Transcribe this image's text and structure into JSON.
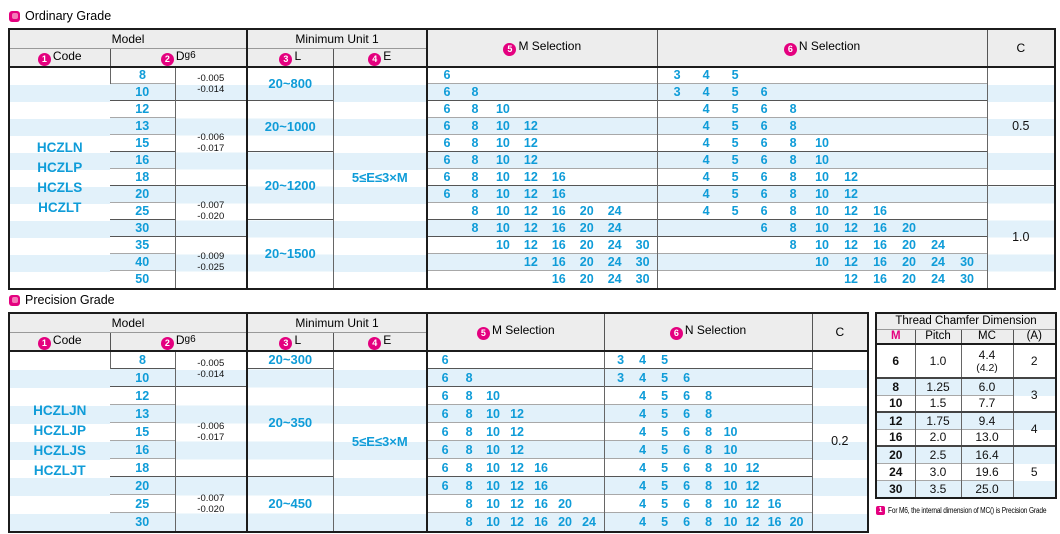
{
  "header": {
    "model": "Model",
    "min_unit": "Minimum Unit 1",
    "num1": "1",
    "num2": "2",
    "num3": "3",
    "num4": "4",
    "num5": "5",
    "num6": "6",
    "code": "Code",
    "d": "D",
    "dsup": "g6",
    "l": "L",
    "e": "E",
    "m": "M Selection",
    "n": "N Selection",
    "c": "C"
  },
  "colors": {
    "accent_blue": "#0f9cd8",
    "accent_magenta": "#e4007f",
    "stripe": "#e2f1fa",
    "header_bg": "#ededed"
  },
  "ordinary": {
    "title": "Ordinary Grade",
    "codes": [
      "HCZLN",
      "HCZLP",
      "HCZLS",
      "HCZLT"
    ],
    "m_slots": [
      6,
      8,
      10,
      12,
      16,
      20,
      24,
      30
    ],
    "n_slots": [
      3,
      4,
      5,
      6,
      8,
      10,
      12,
      16,
      20,
      24,
      30
    ],
    "rows": [
      {
        "d": "8",
        "m": [
          6
        ],
        "n": [
          3,
          4,
          5
        ]
      },
      {
        "d": "10",
        "m": [
          6,
          8
        ],
        "n": [
          3,
          4,
          5,
          6
        ]
      },
      {
        "d": "12",
        "m": [
          6,
          8,
          10
        ],
        "n": [
          4,
          5,
          6,
          8
        ]
      },
      {
        "d": "13",
        "m": [
          6,
          8,
          10,
          12
        ],
        "n": [
          4,
          5,
          6,
          8
        ]
      },
      {
        "d": "15",
        "m": [
          6,
          8,
          10,
          12
        ],
        "n": [
          4,
          5,
          6,
          8,
          10
        ]
      },
      {
        "d": "16",
        "m": [
          6,
          8,
          10,
          12
        ],
        "n": [
          4,
          5,
          6,
          8,
          10
        ]
      },
      {
        "d": "18",
        "m": [
          6,
          8,
          10,
          12,
          16
        ],
        "n": [
          4,
          5,
          6,
          8,
          10,
          12
        ]
      },
      {
        "d": "20",
        "m": [
          6,
          8,
          10,
          12,
          16
        ],
        "n": [
          4,
          5,
          6,
          8,
          10,
          12
        ]
      },
      {
        "d": "25",
        "m": [
          8,
          10,
          12,
          16,
          20,
          24
        ],
        "n": [
          4,
          5,
          6,
          8,
          10,
          12,
          16
        ]
      },
      {
        "d": "30",
        "m": [
          8,
          10,
          12,
          16,
          20,
          24
        ],
        "n": [
          6,
          8,
          10,
          12,
          16,
          20
        ]
      },
      {
        "d": "35",
        "m": [
          10,
          12,
          16,
          20,
          24,
          30
        ],
        "n": [
          8,
          10,
          12,
          16,
          20,
          24
        ]
      },
      {
        "d": "40",
        "m": [
          12,
          16,
          20,
          24,
          30
        ],
        "n": [
          10,
          12,
          16,
          20,
          24,
          30
        ]
      },
      {
        "d": "50",
        "m": [
          16,
          20,
          24,
          30
        ],
        "n": [
          12,
          16,
          20,
          24,
          30
        ]
      }
    ],
    "tol_groups": [
      {
        "span": 2,
        "t1": "-0.005",
        "t2": "-0.014"
      },
      {
        "span": 5,
        "t1": "-0.006",
        "t2": "-0.017"
      },
      {
        "span": 3,
        "t1": "-0.007",
        "t2": "-0.020"
      },
      {
        "span": 3,
        "t1": "-0.009",
        "t2": "-0.025"
      }
    ],
    "l_groups": [
      {
        "span": 2,
        "text": "20~800"
      },
      {
        "span": 3,
        "text": "20~1000"
      },
      {
        "span": 4,
        "text": "20~1200"
      },
      {
        "span": 4,
        "text": "20~1500"
      }
    ],
    "e": "5≤E≤3×M",
    "c_groups": [
      {
        "span": 7,
        "text": "0.5"
      },
      {
        "span": 6,
        "text": "1.0"
      }
    ]
  },
  "precision": {
    "title": "Precision Grade",
    "codes": [
      "HCZLJN",
      "HCZLJP",
      "HCZLJS",
      "HCZLJT"
    ],
    "m_slots": [
      6,
      8,
      10,
      12,
      16,
      20,
      24
    ],
    "n_slots": [
      3,
      4,
      5,
      6,
      8,
      10,
      12,
      16,
      20
    ],
    "rows": [
      {
        "d": "8",
        "m": [
          6
        ],
        "n": [
          3,
          4,
          5
        ]
      },
      {
        "d": "10",
        "m": [
          6,
          8
        ],
        "n": [
          3,
          4,
          5,
          6
        ]
      },
      {
        "d": "12",
        "m": [
          6,
          8,
          10
        ],
        "n": [
          4,
          5,
          6,
          8
        ]
      },
      {
        "d": "13",
        "m": [
          6,
          8,
          10,
          12
        ],
        "n": [
          4,
          5,
          6,
          8
        ]
      },
      {
        "d": "15",
        "m": [
          6,
          8,
          10,
          12
        ],
        "n": [
          4,
          5,
          6,
          8,
          10
        ]
      },
      {
        "d": "16",
        "m": [
          6,
          8,
          10,
          12
        ],
        "n": [
          4,
          5,
          6,
          8,
          10
        ]
      },
      {
        "d": "18",
        "m": [
          6,
          8,
          10,
          12,
          16
        ],
        "n": [
          4,
          5,
          6,
          8,
          10,
          12
        ]
      },
      {
        "d": "20",
        "m": [
          6,
          8,
          10,
          12,
          16
        ],
        "n": [
          4,
          5,
          6,
          8,
          10,
          12
        ]
      },
      {
        "d": "25",
        "m": [
          8,
          10,
          12,
          16,
          20
        ],
        "n": [
          4,
          5,
          6,
          8,
          10,
          12,
          16
        ]
      },
      {
        "d": "30",
        "m": [
          8,
          10,
          12,
          16,
          20,
          24
        ],
        "n": [
          4,
          5,
          6,
          8,
          10,
          12,
          16,
          20
        ]
      }
    ],
    "tol_groups": [
      {
        "span": 2,
        "t1": "-0.005",
        "t2": "-0.014"
      },
      {
        "span": 5,
        "t1": "-0.006",
        "t2": "-0.017"
      },
      {
        "span": 3,
        "t1": "-0.007",
        "t2": "-0.020"
      }
    ],
    "l_groups": [
      {
        "span": 1,
        "text": "20~300"
      },
      {
        "span": 6,
        "text": "20~350"
      },
      {
        "span": 3,
        "text": "20~450"
      }
    ],
    "e": "5≤E≤3×M",
    "c_groups": [
      {
        "span": 10,
        "text": "0.2"
      }
    ]
  },
  "chamfer": {
    "title": "Thread Chamfer Dimension",
    "headers": {
      "m": "M",
      "pitch": "Pitch",
      "mc": "MC",
      "a": "(A)"
    },
    "rows": [
      {
        "m": "6",
        "pitch": "1.0",
        "mc": "4.4",
        "mc2": "(4.2)"
      },
      {
        "m": "8",
        "pitch": "1.25",
        "mc": "6.0"
      },
      {
        "m": "10",
        "pitch": "1.5",
        "mc": "7.7"
      },
      {
        "m": "12",
        "pitch": "1.75",
        "mc": "9.4"
      },
      {
        "m": "16",
        "pitch": "2.0",
        "mc": "13.0"
      },
      {
        "m": "20",
        "pitch": "2.5",
        "mc": "16.4"
      },
      {
        "m": "24",
        "pitch": "3.0",
        "mc": "19.6"
      },
      {
        "m": "30",
        "pitch": "3.5",
        "mc": "25.0"
      }
    ],
    "a_groups": [
      {
        "span": 1,
        "text": "2"
      },
      {
        "span": 2,
        "text": "3"
      },
      {
        "span": 2,
        "text": "4"
      },
      {
        "span": 3,
        "text": "5"
      }
    ],
    "footnote_icon": "1",
    "footnote": "For M6, the internal dimension of MC() is Precision Grade"
  }
}
